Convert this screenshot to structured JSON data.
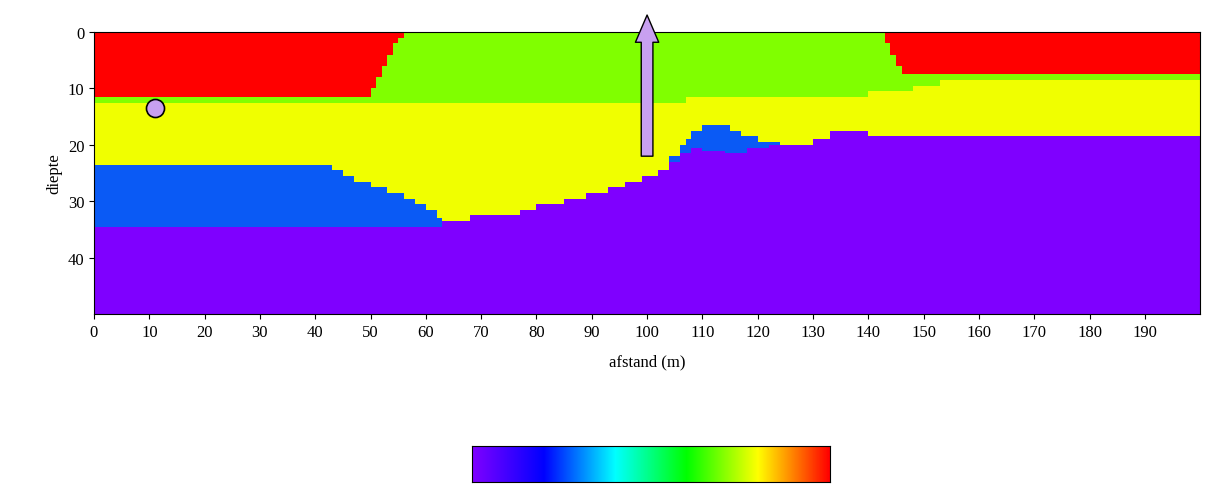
{
  "chart_data": {
    "type": "section",
    "xlabel": "afstand (m)",
    "ylabel": "diepte",
    "xlim": [
      0,
      200
    ],
    "ylim": [
      50,
      0
    ],
    "xticks": [
      0,
      10,
      20,
      30,
      40,
      50,
      60,
      70,
      80,
      90,
      100,
      110,
      120,
      130,
      140,
      150,
      160,
      170,
      180,
      190
    ],
    "yticks": [
      0,
      10,
      20,
      30,
      40
    ],
    "layers": [
      {
        "color": "#f0ff00",
        "x": [
          0,
          200
        ],
        "top": [
          0,
          0
        ]
      },
      {
        "color": "#0a5af5",
        "x": [
          0,
          43,
          45,
          47,
          50,
          53,
          56,
          58,
          60,
          62,
          63,
          104,
          106,
          107,
          108,
          110,
          115,
          117,
          120,
          124,
          200
        ],
        "top": [
          23.5,
          24.5,
          25.5,
          26.5,
          27.5,
          28.5,
          29.5,
          30.5,
          31.5,
          33,
          50,
          22,
          20,
          19,
          17.5,
          16.5,
          17.5,
          18.5,
          19.5,
          50,
          50
        ]
      },
      {
        "color": "#7f00ff",
        "x": [
          0,
          63,
          68,
          77,
          80,
          85,
          89,
          93,
          96,
          99,
          102,
          104,
          106,
          108,
          110,
          114,
          118,
          122,
          130,
          133,
          140,
          200
        ],
        "top": [
          34.5,
          33.5,
          32.5,
          31.5,
          30.5,
          29.5,
          28.5,
          27.5,
          26.5,
          25.5,
          24.5,
          23,
          21.5,
          20.5,
          21,
          21.5,
          20.5,
          20,
          19,
          17.5,
          18.5,
          18.5
        ]
      },
      {
        "color": "#80ff00",
        "x": [
          0,
          107,
          140,
          148,
          153,
          200
        ],
        "bottom": [
          12.5,
          11.5,
          10.5,
          9.5,
          8.5,
          8.5
        ]
      },
      {
        "color": "#ff0000",
        "x": [
          0,
          50,
          51,
          52,
          53,
          54,
          55,
          56,
          143,
          144,
          145,
          146,
          200
        ],
        "bottom": [
          11.5,
          10,
          8,
          6,
          4,
          2,
          1,
          0,
          2,
          4,
          6,
          7.5,
          7.5
        ]
      }
    ],
    "source": {
      "x": 11,
      "depth": 13.5,
      "color": "#c8a0f0"
    },
    "arrow": {
      "x": 100,
      "from": 22,
      "to": -3,
      "color": "#c8a0f0"
    },
    "colorbar": {
      "colors": [
        "#7f00ff",
        "#0000ff",
        "#00ffff",
        "#00ff00",
        "#ffff00",
        "#ff0000"
      ],
      "tick_labels": false
    }
  }
}
